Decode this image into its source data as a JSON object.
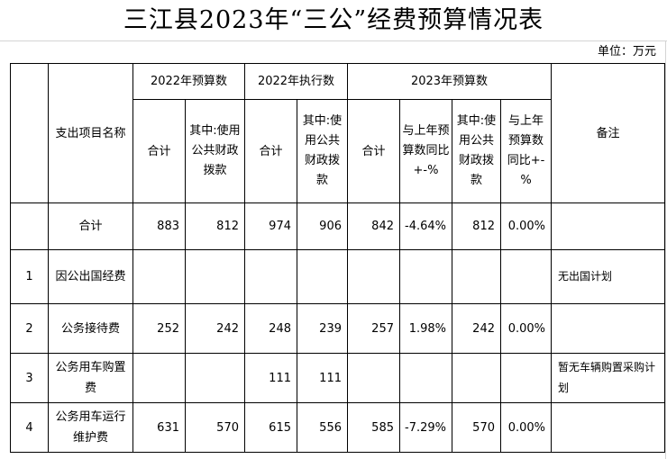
{
  "title": "三江县2023年“三公”经费预算情况表",
  "unit": "单位：万元",
  "headers": {
    "item_name": "支出项目名称",
    "group_2022_budget": "2022年预算数",
    "group_2022_exec": "2022年执行数",
    "group_2023_budget": "2023年预算数",
    "total": "合计",
    "of_which_public": "其中:使用公共财政拨款",
    "of_which_public_split": "其中:使用公共财政拨款",
    "yoy_change": "与上年预算数同比+-%",
    "of_which_public_2023": "其中:使用公共财政拨款",
    "yoy_change_pct": "与上年预算数同比+-%",
    "remark": "备注"
  },
  "total_row": {
    "label": "合计",
    "b2022_total": "883",
    "b2022_public": "812",
    "e2022_total": "974",
    "e2022_public": "906",
    "b2023_total": "842",
    "b2023_yoy": "-4.64%",
    "b2023_public": "812",
    "b2023_public_yoy": "0.00%",
    "remark": ""
  },
  "rows": [
    {
      "index": "1",
      "name": "因公出国经费",
      "b2022_total": "",
      "b2022_public": "",
      "e2022_total": "",
      "e2022_public": "",
      "b2023_total": "",
      "b2023_yoy": "",
      "b2023_public": "",
      "b2023_public_yoy": "",
      "remark": "无出国计划"
    },
    {
      "index": "2",
      "name": "公务接待费",
      "b2022_total": "252",
      "b2022_public": "242",
      "e2022_total": "248",
      "e2022_public": "239",
      "b2023_total": "257",
      "b2023_yoy": "1.98%",
      "b2023_public": "242",
      "b2023_public_yoy": "0.00%",
      "remark": ""
    },
    {
      "index": "3",
      "name": "公务用车购置费",
      "b2022_total": "",
      "b2022_public": "",
      "e2022_total": "111",
      "e2022_public": "111",
      "b2023_total": "",
      "b2023_yoy": "",
      "b2023_public": "",
      "b2023_public_yoy": "",
      "remark": "暂无车辆购置采购计划"
    },
    {
      "index": "4",
      "name": "公务用车运行维护费",
      "b2022_total": "631",
      "b2022_public": "570",
      "e2022_total": "615",
      "e2022_public": "556",
      "b2023_total": "585",
      "b2023_yoy": "-7.29%",
      "b2023_public": "570",
      "b2023_public_yoy": "0.00%",
      "remark": ""
    }
  ]
}
